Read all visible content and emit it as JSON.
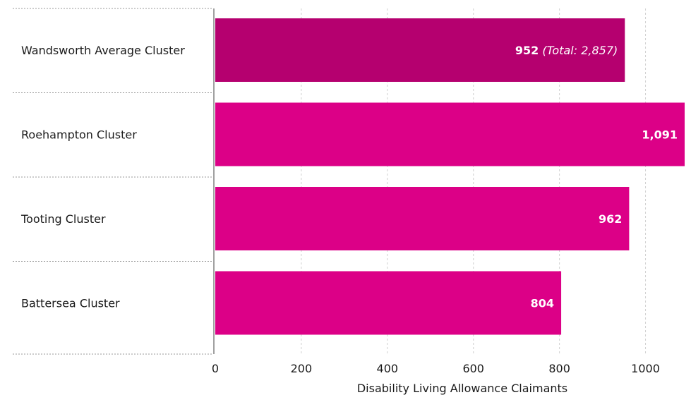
{
  "chart_data": {
    "type": "bar",
    "orientation": "horizontal",
    "categories": [
      "Wandsworth Average Cluster",
      "Roehampton Cluster",
      "Tooting Cluster",
      "Battersea Cluster"
    ],
    "values": [
      952,
      1091,
      962,
      804
    ],
    "value_labels": [
      "952",
      "1,091",
      "962",
      "804"
    ],
    "value_notes": [
      "(Total: 2,857)",
      "",
      "",
      ""
    ],
    "bar_colors": [
      "#b5006f",
      "#dc0087",
      "#dc0087",
      "#dc0087"
    ],
    "xlabel": "Disability Living Allowance Claimants",
    "xlim": [
      0,
      1091
    ],
    "xticks": [
      0,
      200,
      400,
      600,
      800,
      1000
    ],
    "grid": "vertical dashed"
  }
}
